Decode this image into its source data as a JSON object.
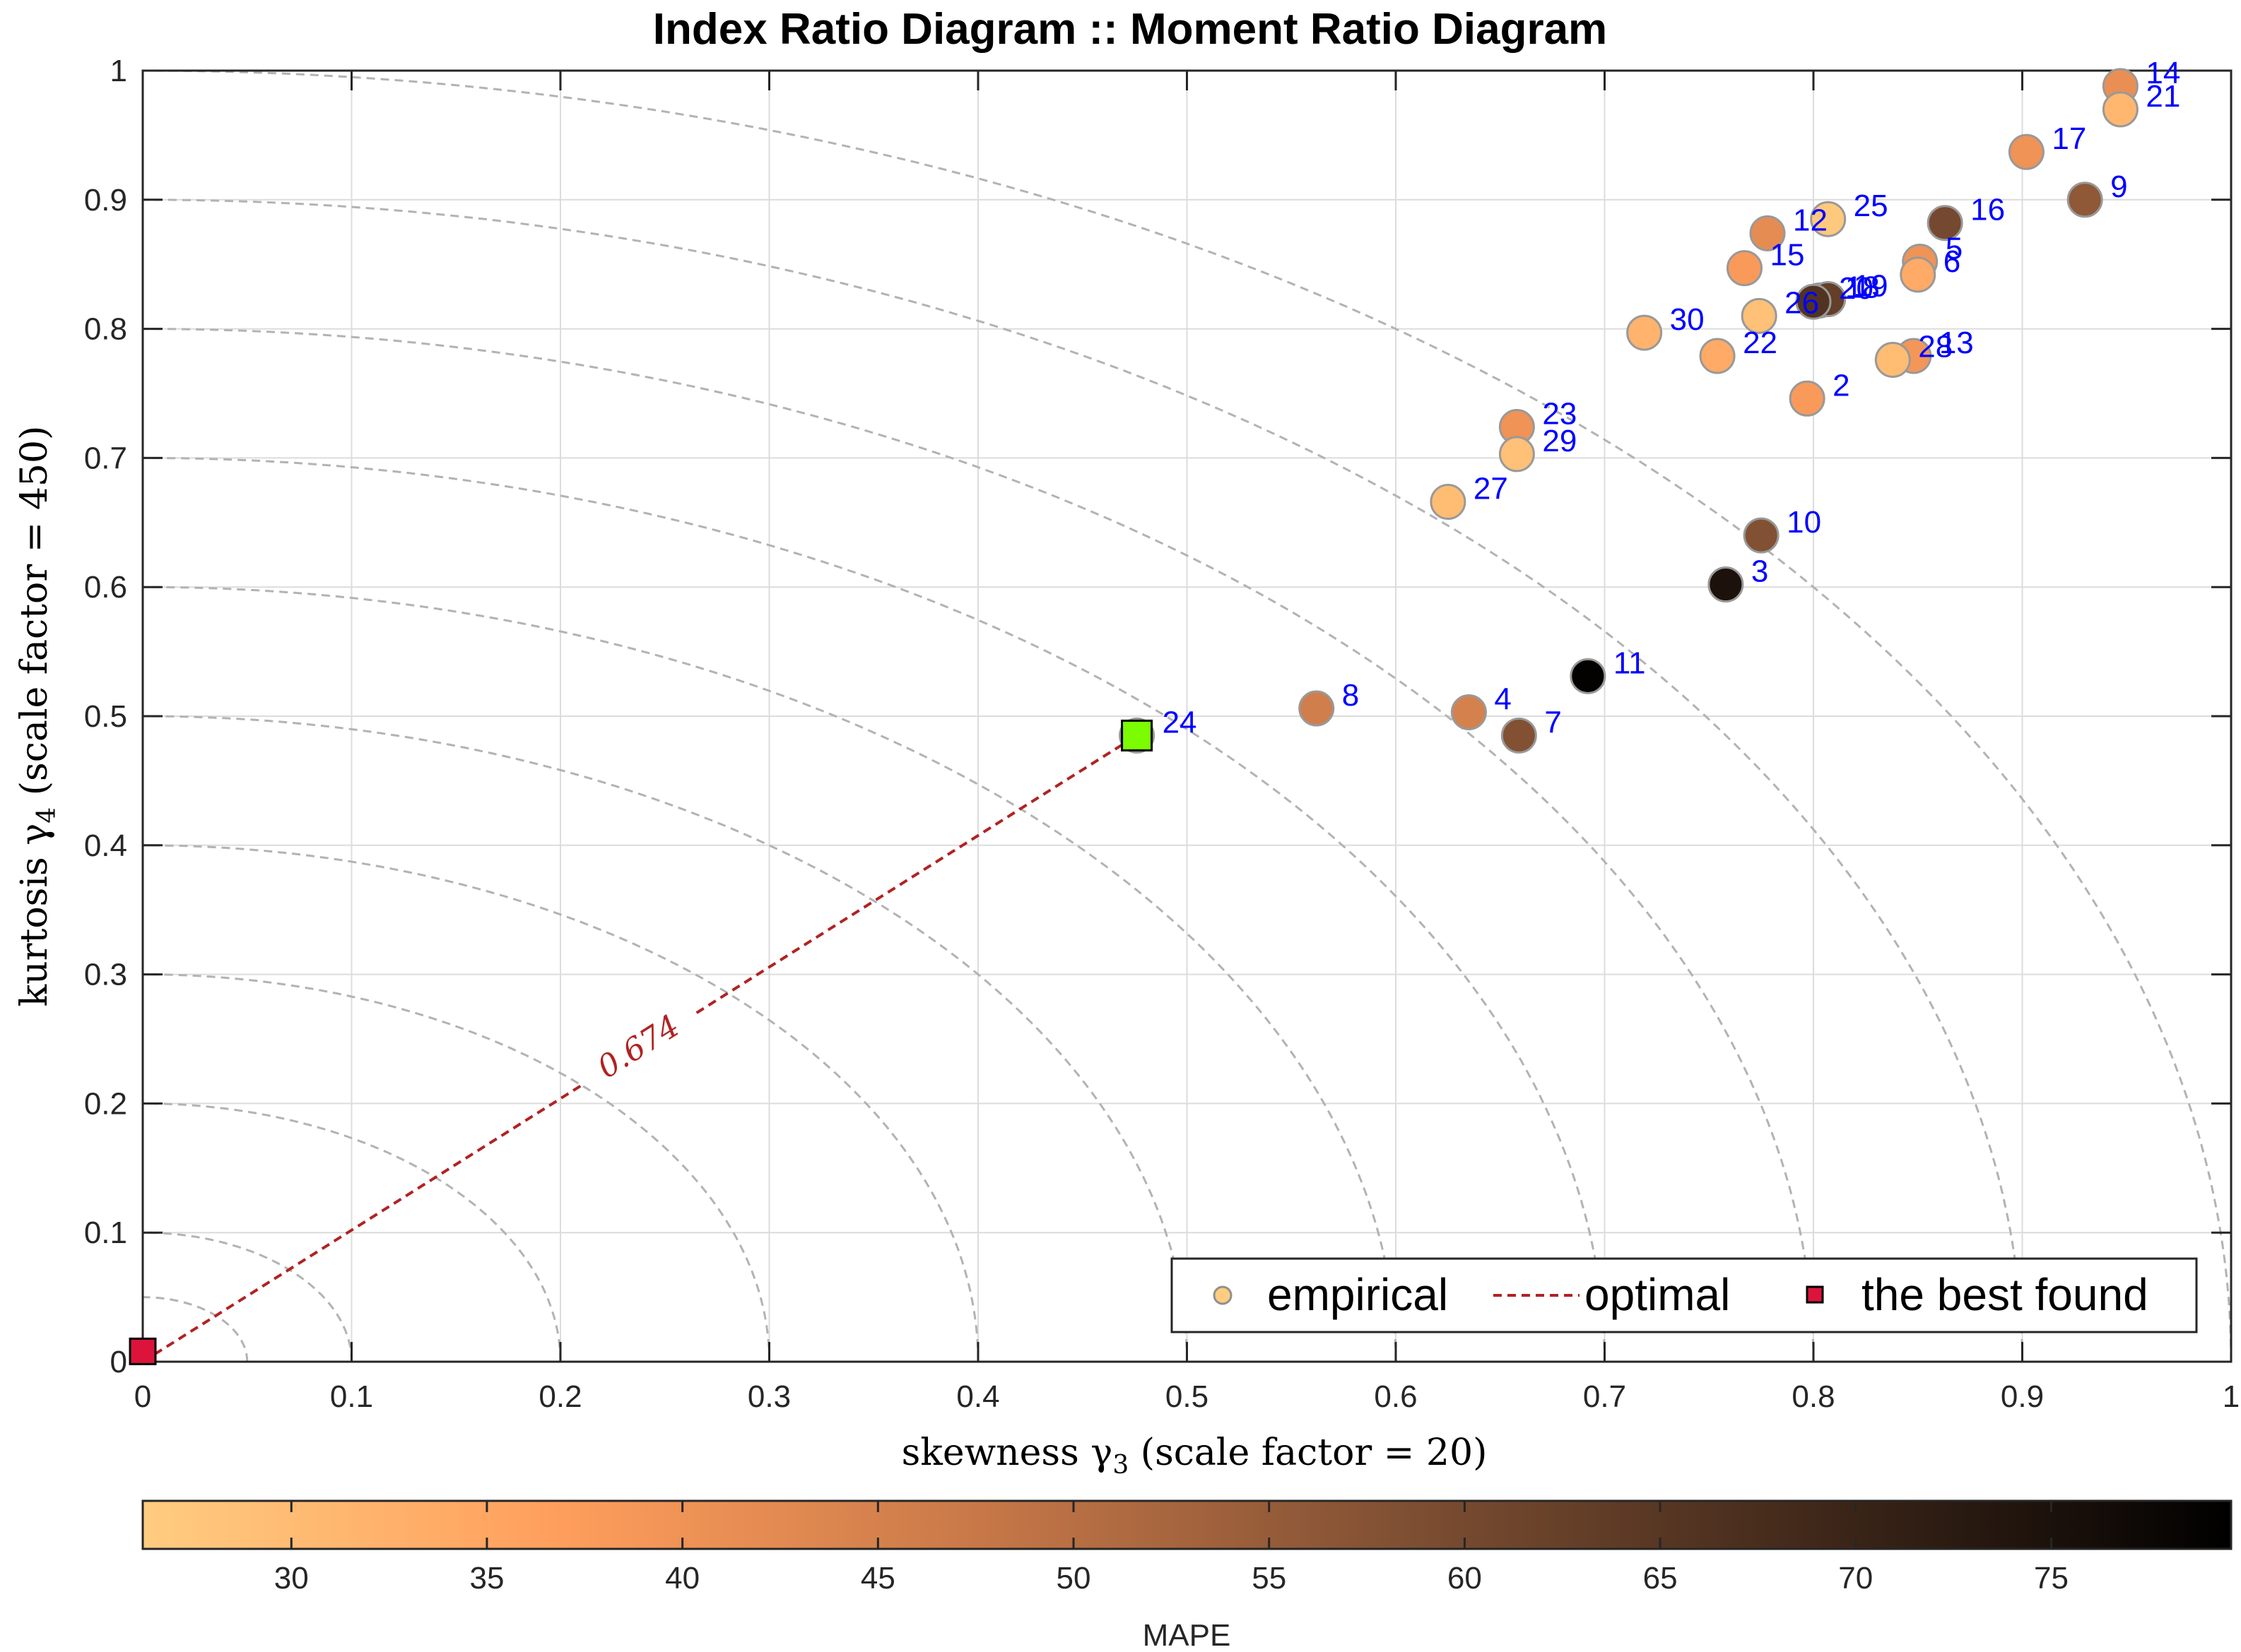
{
  "chart_data": {
    "type": "scatter",
    "title": "Index Ratio Diagram :: Moment Ratio Diagram",
    "xlabel_prefix": "skewness γ",
    "xlabel_sub": "3",
    "xlabel_suffix": " (scale factor = 20)",
    "ylabel_prefix": "kurtosis γ",
    "ylabel_sub": "4",
    "ylabel_suffix": " (scale factor = 450)",
    "xlim": [
      0,
      1
    ],
    "ylim": [
      0,
      1
    ],
    "grid": true,
    "xticks": [
      0,
      0.1,
      0.2,
      0.3,
      0.4,
      0.5,
      0.6,
      0.7,
      0.8,
      0.9,
      1
    ],
    "xtick_labels": [
      "0",
      "0.1",
      "0.2",
      "0.3",
      "0.4",
      "0.5",
      "0.6",
      "0.7",
      "0.8",
      "0.9",
      "1"
    ],
    "yticks": [
      0,
      0.1,
      0.2,
      0.3,
      0.4,
      0.5,
      0.6,
      0.7,
      0.8,
      0.9,
      1
    ],
    "ytick_labels": [
      "0",
      "0.1",
      "0.2",
      "0.3",
      "0.4",
      "0.5",
      "0.6",
      "0.7",
      "0.8",
      "0.9",
      "1"
    ],
    "contour_radii": [
      0.05,
      0.1,
      0.2,
      0.3,
      0.4,
      0.5,
      0.6,
      0.7,
      0.8,
      0.9,
      1.0
    ],
    "colorbar": {
      "label": "MAPE",
      "min": 26.2,
      "max": 79.6,
      "ticks": [
        30,
        35,
        40,
        45,
        50,
        55,
        60,
        65,
        70,
        75
      ],
      "tick_labels": [
        "30",
        "35",
        "40",
        "45",
        "50",
        "55",
        "60",
        "65",
        "70",
        "75"
      ],
      "colors": [
        "#FFCC80",
        "#FF9E5C",
        "#C87848",
        "#805033",
        "#40281A",
        "#000000"
      ]
    },
    "points": [
      {
        "label": "2",
        "x": 0.797,
        "y": 0.746,
        "mape": 38
      },
      {
        "label": "3",
        "x": 0.758,
        "y": 0.602,
        "mape": 75
      },
      {
        "label": "4",
        "x": 0.635,
        "y": 0.503,
        "mape": 45
      },
      {
        "label": "5",
        "x": 0.851,
        "y": 0.852,
        "mape": 40
      },
      {
        "label": "6",
        "x": 0.85,
        "y": 0.842,
        "mape": 34
      },
      {
        "label": "7",
        "x": 0.659,
        "y": 0.485,
        "mape": 58
      },
      {
        "label": "8",
        "x": 0.562,
        "y": 0.506,
        "mape": 46
      },
      {
        "label": "9",
        "x": 0.93,
        "y": 0.9,
        "mape": 56
      },
      {
        "label": "10",
        "x": 0.775,
        "y": 0.64,
        "mape": 58
      },
      {
        "label": "11",
        "x": 0.692,
        "y": 0.531,
        "mape": 79
      },
      {
        "label": "12",
        "x": 0.778,
        "y": 0.874,
        "mape": 42
      },
      {
        "label": "13",
        "x": 0.848,
        "y": 0.779,
        "mape": 39
      },
      {
        "label": "14",
        "x": 0.947,
        "y": 0.988,
        "mape": 41
      },
      {
        "label": "15",
        "x": 0.767,
        "y": 0.847,
        "mape": 38
      },
      {
        "label": "16",
        "x": 0.863,
        "y": 0.882,
        "mape": 60
      },
      {
        "label": "17",
        "x": 0.902,
        "y": 0.937,
        "mape": 40
      },
      {
        "label": "18",
        "x": 0.803,
        "y": 0.822,
        "mape": 55
      },
      {
        "label": "19",
        "x": 0.807,
        "y": 0.823,
        "mape": 63
      },
      {
        "label": "20",
        "x": 0.8,
        "y": 0.821,
        "mape": 66
      },
      {
        "label": "21",
        "x": 0.947,
        "y": 0.97,
        "mape": 31
      },
      {
        "label": "22",
        "x": 0.754,
        "y": 0.779,
        "mape": 34
      },
      {
        "label": "23",
        "x": 0.658,
        "y": 0.724,
        "mape": 40
      },
      {
        "label": "24",
        "x": 0.476,
        "y": 0.485,
        "mape": 27
      },
      {
        "label": "25",
        "x": 0.807,
        "y": 0.885,
        "mape": 27
      },
      {
        "label": "26",
        "x": 0.774,
        "y": 0.81,
        "mape": 29
      },
      {
        "label": "27",
        "x": 0.625,
        "y": 0.666,
        "mape": 30
      },
      {
        "label": "28",
        "x": 0.838,
        "y": 0.776,
        "mape": 30
      },
      {
        "label": "29",
        "x": 0.658,
        "y": 0.703,
        "mape": 29
      },
      {
        "label": "30",
        "x": 0.719,
        "y": 0.797,
        "mape": 32
      }
    ],
    "optimal_line": {
      "from": [
        0,
        0
      ],
      "to": [
        0.476,
        0.485
      ],
      "label": "0.674"
    },
    "best_found": {
      "label": "24",
      "x": 0.476,
      "y": 0.485,
      "color": "#7CFC00"
    },
    "origin_marker": {
      "x": 0.0,
      "y": 0.008,
      "color": "#DC143C"
    },
    "legend": {
      "position": "bottom-right",
      "entries": [
        "empirical",
        "optimal",
        "the best found"
      ]
    }
  }
}
